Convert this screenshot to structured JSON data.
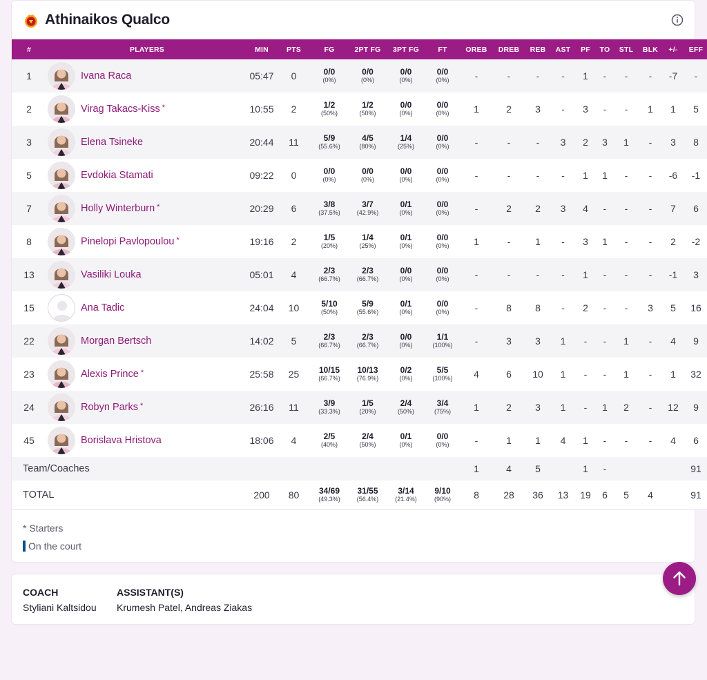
{
  "team": {
    "name": "Athinaikos Qualco"
  },
  "headers": [
    "#",
    "PLAYERS",
    "MIN",
    "PTS",
    "FG",
    "2PT FG",
    "3PT FG",
    "FT",
    "OREB",
    "DREB",
    "REB",
    "AST",
    "PF",
    "TO",
    "STL",
    "BLK",
    "+/-",
    "EFF"
  ],
  "players": [
    {
      "num": "1",
      "name": "Ivana Raca",
      "starter": "",
      "min": "05:47",
      "pts": "0",
      "fg": "0/0",
      "fg_pct": "(0%)",
      "fg2": "0/0",
      "fg2_pct": "(0%)",
      "fg3": "0/0",
      "fg3_pct": "(0%)",
      "ft": "0/0",
      "ft_pct": "(0%)",
      "oreb": "-",
      "dreb": "-",
      "reb": "-",
      "ast": "-",
      "pf": "1",
      "to": "-",
      "stl": "-",
      "blk": "-",
      "pm": "-7",
      "eff": "-"
    },
    {
      "num": "2",
      "name": "Virag Takacs-Kiss",
      "starter": "*",
      "min": "10:55",
      "pts": "2",
      "fg": "1/2",
      "fg_pct": "(50%)",
      "fg2": "1/2",
      "fg2_pct": "(50%)",
      "fg3": "0/0",
      "fg3_pct": "(0%)",
      "ft": "0/0",
      "ft_pct": "(0%)",
      "oreb": "1",
      "dreb": "2",
      "reb": "3",
      "ast": "-",
      "pf": "3",
      "to": "-",
      "stl": "-",
      "blk": "1",
      "pm": "1",
      "eff": "5"
    },
    {
      "num": "3",
      "name": "Elena Tsineke",
      "starter": "",
      "min": "20:44",
      "pts": "11",
      "fg": "5/9",
      "fg_pct": "(55.6%)",
      "fg2": "4/5",
      "fg2_pct": "(80%)",
      "fg3": "1/4",
      "fg3_pct": "(25%)",
      "ft": "0/0",
      "ft_pct": "(0%)",
      "oreb": "-",
      "dreb": "-",
      "reb": "-",
      "ast": "3",
      "pf": "2",
      "to": "3",
      "stl": "1",
      "blk": "-",
      "pm": "3",
      "eff": "8"
    },
    {
      "num": "5",
      "name": "Evdokia Stamati",
      "starter": "",
      "min": "09:22",
      "pts": "0",
      "fg": "0/0",
      "fg_pct": "(0%)",
      "fg2": "0/0",
      "fg2_pct": "(0%)",
      "fg3": "0/0",
      "fg3_pct": "(0%)",
      "ft": "0/0",
      "ft_pct": "(0%)",
      "oreb": "-",
      "dreb": "-",
      "reb": "-",
      "ast": "-",
      "pf": "1",
      "to": "1",
      "stl": "-",
      "blk": "-",
      "pm": "-6",
      "eff": "-1"
    },
    {
      "num": "7",
      "name": "Holly Winterburn",
      "starter": "*",
      "min": "20:29",
      "pts": "6",
      "fg": "3/8",
      "fg_pct": "(37.5%)",
      "fg2": "3/7",
      "fg2_pct": "(42.9%)",
      "fg3": "0/1",
      "fg3_pct": "(0%)",
      "ft": "0/0",
      "ft_pct": "(0%)",
      "oreb": "-",
      "dreb": "2",
      "reb": "2",
      "ast": "3",
      "pf": "4",
      "to": "-",
      "stl": "-",
      "blk": "-",
      "pm": "7",
      "eff": "6"
    },
    {
      "num": "8",
      "name": "Pinelopi Pavlopoulou",
      "starter": "*",
      "min": "19:16",
      "pts": "2",
      "fg": "1/5",
      "fg_pct": "(20%)",
      "fg2": "1/4",
      "fg2_pct": "(25%)",
      "fg3": "0/1",
      "fg3_pct": "(0%)",
      "ft": "0/0",
      "ft_pct": "(0%)",
      "oreb": "1",
      "dreb": "-",
      "reb": "1",
      "ast": "-",
      "pf": "3",
      "to": "1",
      "stl": "-",
      "blk": "-",
      "pm": "2",
      "eff": "-2"
    },
    {
      "num": "13",
      "name": "Vasiliki Louka",
      "starter": "",
      "min": "05:01",
      "pts": "4",
      "fg": "2/3",
      "fg_pct": "(66.7%)",
      "fg2": "2/3",
      "fg2_pct": "(66.7%)",
      "fg3": "0/0",
      "fg3_pct": "(0%)",
      "ft": "0/0",
      "ft_pct": "(0%)",
      "oreb": "-",
      "dreb": "-",
      "reb": "-",
      "ast": "-",
      "pf": "1",
      "to": "-",
      "stl": "-",
      "blk": "-",
      "pm": "-1",
      "eff": "3"
    },
    {
      "num": "15",
      "name": "Ana Tadic",
      "starter": "",
      "min": "24:04",
      "pts": "10",
      "fg": "5/10",
      "fg_pct": "(50%)",
      "fg2": "5/9",
      "fg2_pct": "(55.6%)",
      "fg3": "0/1",
      "fg3_pct": "(0%)",
      "ft": "0/0",
      "ft_pct": "(0%)",
      "oreb": "-",
      "dreb": "8",
      "reb": "8",
      "ast": "-",
      "pf": "2",
      "to": "-",
      "stl": "-",
      "blk": "3",
      "pm": "5",
      "eff": "16"
    },
    {
      "num": "22",
      "name": "Morgan Bertsch",
      "starter": "",
      "min": "14:02",
      "pts": "5",
      "fg": "2/3",
      "fg_pct": "(66.7%)",
      "fg2": "2/3",
      "fg2_pct": "(66.7%)",
      "fg3": "0/0",
      "fg3_pct": "(0%)",
      "ft": "1/1",
      "ft_pct": "(100%)",
      "oreb": "-",
      "dreb": "3",
      "reb": "3",
      "ast": "1",
      "pf": "-",
      "to": "-",
      "stl": "1",
      "blk": "-",
      "pm": "4",
      "eff": "9"
    },
    {
      "num": "23",
      "name": "Alexis Prince",
      "starter": "*",
      "min": "25:58",
      "pts": "25",
      "fg": "10/15",
      "fg_pct": "(66.7%)",
      "fg2": "10/13",
      "fg2_pct": "(76.9%)",
      "fg3": "0/2",
      "fg3_pct": "(0%)",
      "ft": "5/5",
      "ft_pct": "(100%)",
      "oreb": "4",
      "dreb": "6",
      "reb": "10",
      "ast": "1",
      "pf": "-",
      "to": "-",
      "stl": "1",
      "blk": "-",
      "pm": "1",
      "eff": "32"
    },
    {
      "num": "24",
      "name": "Robyn Parks",
      "starter": "*",
      "min": "26:16",
      "pts": "11",
      "fg": "3/9",
      "fg_pct": "(33.3%)",
      "fg2": "1/5",
      "fg2_pct": "(20%)",
      "fg3": "2/4",
      "fg3_pct": "(50%)",
      "ft": "3/4",
      "ft_pct": "(75%)",
      "oreb": "1",
      "dreb": "2",
      "reb": "3",
      "ast": "1",
      "pf": "-",
      "to": "1",
      "stl": "2",
      "blk": "-",
      "pm": "12",
      "eff": "9"
    },
    {
      "num": "45",
      "name": "Borislava Hristova",
      "starter": "",
      "min": "18:06",
      "pts": "4",
      "fg": "2/5",
      "fg_pct": "(40%)",
      "fg2": "2/4",
      "fg2_pct": "(50%)",
      "fg3": "0/1",
      "fg3_pct": "(0%)",
      "ft": "0/0",
      "ft_pct": "(0%)",
      "oreb": "-",
      "dreb": "1",
      "reb": "1",
      "ast": "4",
      "pf": "1",
      "to": "-",
      "stl": "-",
      "blk": "-",
      "pm": "4",
      "eff": "6"
    }
  ],
  "team_row": {
    "label": "Team/Coaches",
    "oreb": "1",
    "dreb": "4",
    "reb": "5",
    "pf": "1",
    "to": "-",
    "eff": "91"
  },
  "total_row": {
    "label": "TOTAL",
    "min": "200",
    "pts": "80",
    "fg": "34/69",
    "fg_pct": "(49.3%)",
    "fg2": "31/55",
    "fg2_pct": "(56.4%)",
    "fg3": "3/14",
    "fg3_pct": "(21.4%)",
    "ft": "9/10",
    "ft_pct": "(90%)",
    "oreb": "8",
    "dreb": "28",
    "reb": "36",
    "ast": "13",
    "pf": "19",
    "to": "6",
    "stl": "5",
    "blk": "4",
    "eff": "91"
  },
  "legend": {
    "starters": "* Starters",
    "on_court": "On the court"
  },
  "coach": {
    "coach_label": "COACH",
    "coach_name": "Styliani Kaltsidou",
    "assistants_label": "ASSISTANT(S)",
    "assistants_names": "Krumesh Patel, Andreas Ziakas"
  },
  "icons": {
    "logo": "team-crest-icon",
    "info": "info-icon",
    "scroll": "arrow-up-icon"
  },
  "colors": {
    "accent": "#9c1c86",
    "name_link": "#8e1a78",
    "on_court": "#0d4e8c"
  }
}
